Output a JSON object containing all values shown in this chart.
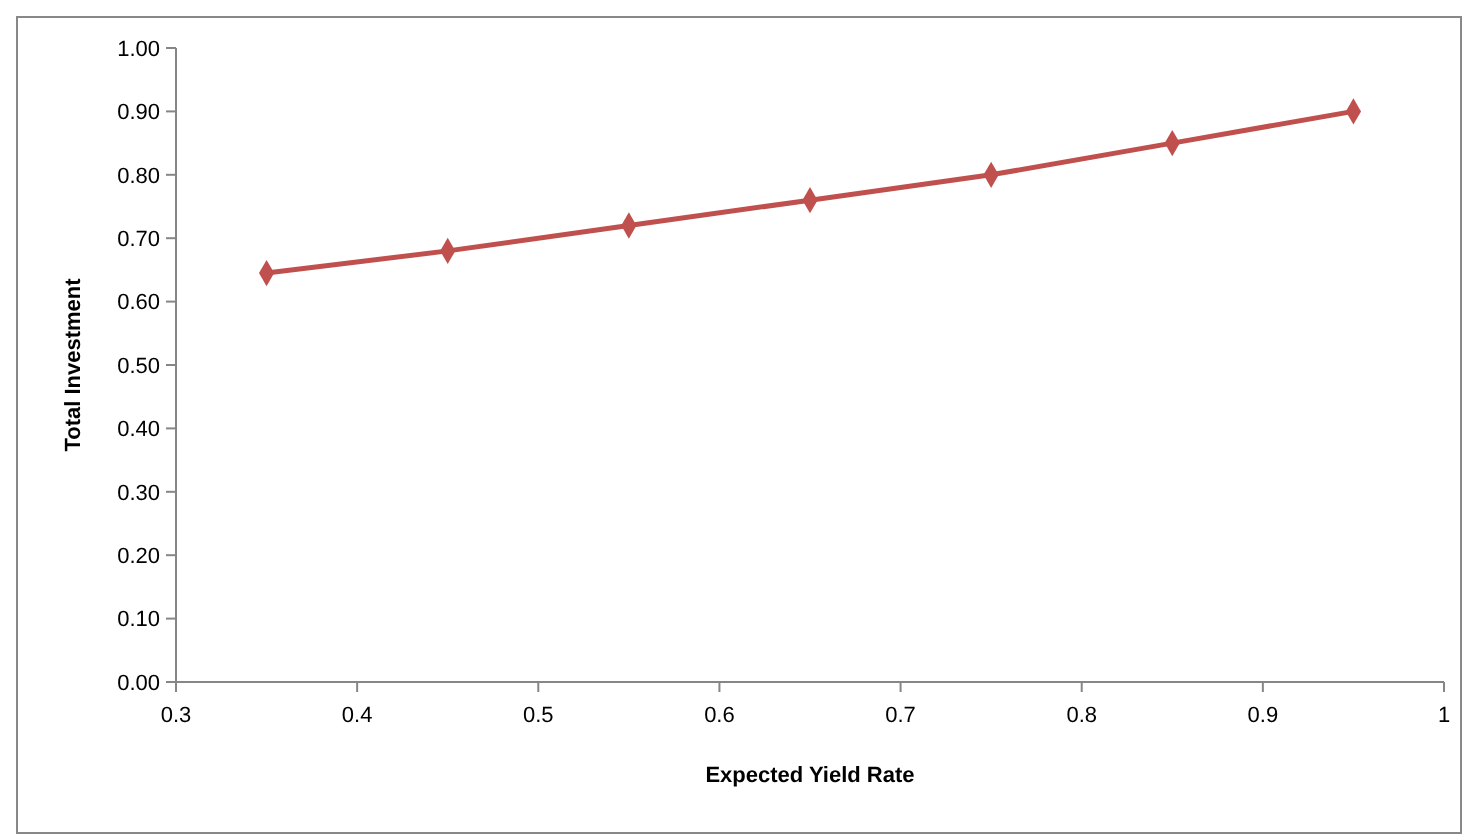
{
  "chart_data": {
    "type": "line",
    "xlabel": "Expected Yield Rate",
    "ylabel": "Total Investment",
    "x": [
      0.35,
      0.45,
      0.55,
      0.65,
      0.75,
      0.85,
      0.95
    ],
    "series": [
      {
        "color": "#c0504d",
        "values": [
          0.645,
          0.68,
          0.72,
          0.76,
          0.8,
          0.85,
          0.9
        ]
      }
    ],
    "xlim": [
      0.3,
      1
    ],
    "xticks": [
      0.3,
      0.4,
      0.5,
      0.6,
      0.7,
      0.8,
      0.9,
      1
    ],
    "ylim": [
      0,
      1
    ],
    "yticks": [
      {
        "value": 0,
        "label": "0.00"
      },
      {
        "value": 0.1,
        "label": "0.10"
      },
      {
        "value": 0.2,
        "label": "0.20"
      },
      {
        "value": 0.3,
        "label": "0.30"
      },
      {
        "value": 0.4,
        "label": "0.40"
      },
      {
        "value": 0.5,
        "label": "0.50"
      },
      {
        "value": 0.6,
        "label": "0.60"
      },
      {
        "value": 0.7,
        "label": "0.70"
      },
      {
        "value": 0.8,
        "label": "0.80"
      },
      {
        "value": 0.9,
        "label": "0.90"
      },
      {
        "value": 1,
        "label": "1.00"
      }
    ],
    "marker": "diamond",
    "line_style": "solid"
  }
}
